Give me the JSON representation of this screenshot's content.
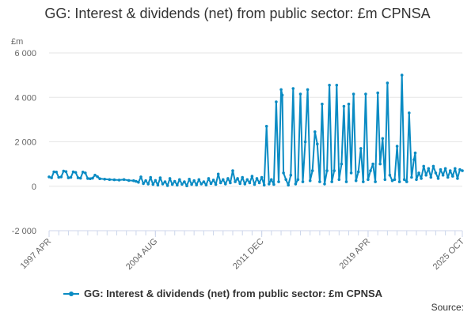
{
  "chart_data": {
    "type": "line",
    "title": "GG: Interest & dividends (net) from public sector: £m CPNSA",
    "ylabel": "£m",
    "xlabel": "",
    "ylim": [
      -2000,
      6000
    ],
    "yticks": [
      "6 000",
      "4 000",
      "2 000",
      "0",
      "-2 000"
    ],
    "ytick_values": [
      6000,
      4000,
      2000,
      0,
      -2000
    ],
    "xticks": [
      "1997 APR",
      "2004 AUG",
      "2011 DEC",
      "2019 APR",
      "2025 OCT"
    ],
    "xtick_index": [
      0,
      88,
      176,
      264,
      342
    ],
    "x_start": "1997 APR",
    "x_end": "2025 OCT",
    "series": [
      {
        "name": "GG: Interest & dividends (net) from public sector: £m CPNSA",
        "color": "#0a8bc3",
        "points": [
          [
            0,
            420
          ],
          [
            2,
            380
          ],
          [
            4,
            650
          ],
          [
            6,
            640
          ],
          [
            8,
            400
          ],
          [
            10,
            420
          ],
          [
            12,
            680
          ],
          [
            14,
            660
          ],
          [
            16,
            380
          ],
          [
            18,
            400
          ],
          [
            20,
            650
          ],
          [
            22,
            620
          ],
          [
            24,
            380
          ],
          [
            26,
            360
          ],
          [
            28,
            640
          ],
          [
            30,
            600
          ],
          [
            32,
            350
          ],
          [
            34,
            340
          ],
          [
            36,
            360
          ],
          [
            38,
            500
          ],
          [
            40,
            430
          ],
          [
            42,
            340
          ],
          [
            46,
            320
          ],
          [
            50,
            300
          ],
          [
            54,
            290
          ],
          [
            58,
            280
          ],
          [
            62,
            300
          ],
          [
            66,
            260
          ],
          [
            70,
            250
          ],
          [
            72,
            220
          ],
          [
            74,
            180
          ],
          [
            76,
            420
          ],
          [
            78,
            120
          ],
          [
            80,
            250
          ],
          [
            82,
            100
          ],
          [
            84,
            400
          ],
          [
            86,
            80
          ],
          [
            88,
            260
          ],
          [
            90,
            50
          ],
          [
            92,
            380
          ],
          [
            94,
            100
          ],
          [
            96,
            200
          ],
          [
            98,
            30
          ],
          [
            100,
            350
          ],
          [
            102,
            80
          ],
          [
            104,
            220
          ],
          [
            106,
            50
          ],
          [
            108,
            300
          ],
          [
            110,
            90
          ],
          [
            112,
            200
          ],
          [
            114,
            20
          ],
          [
            116,
            320
          ],
          [
            118,
            80
          ],
          [
            120,
            250
          ],
          [
            122,
            60
          ],
          [
            124,
            300
          ],
          [
            126,
            100
          ],
          [
            128,
            200
          ],
          [
            130,
            60
          ],
          [
            132,
            350
          ],
          [
            134,
            120
          ],
          [
            136,
            280
          ],
          [
            138,
            80
          ],
          [
            140,
            550
          ],
          [
            142,
            150
          ],
          [
            144,
            300
          ],
          [
            146,
            100
          ],
          [
            148,
            350
          ],
          [
            150,
            150
          ],
          [
            152,
            700
          ],
          [
            154,
            200
          ],
          [
            156,
            350
          ],
          [
            158,
            120
          ],
          [
            160,
            400
          ],
          [
            162,
            100
          ],
          [
            164,
            300
          ],
          [
            166,
            150
          ],
          [
            168,
            450
          ],
          [
            170,
            80
          ],
          [
            172,
            350
          ],
          [
            174,
            150
          ],
          [
            176,
            400
          ],
          [
            178,
            50
          ],
          [
            180,
            2700
          ],
          [
            182,
            100
          ],
          [
            184,
            300
          ],
          [
            186,
            80
          ],
          [
            188,
            3800
          ],
          [
            190,
            200
          ],
          [
            192,
            4350
          ],
          [
            193,
            4100
          ],
          [
            194,
            600
          ],
          [
            196,
            300
          ],
          [
            198,
            50
          ],
          [
            200,
            500
          ],
          [
            202,
            4400
          ],
          [
            204,
            100
          ],
          [
            206,
            300
          ],
          [
            208,
            4150
          ],
          [
            210,
            200
          ],
          [
            212,
            2000
          ],
          [
            214,
            4350
          ],
          [
            216,
            250
          ],
          [
            218,
            700
          ],
          [
            220,
            2450
          ],
          [
            222,
            1900
          ],
          [
            224,
            200
          ],
          [
            226,
            3700
          ],
          [
            228,
            100
          ],
          [
            230,
            700
          ],
          [
            232,
            4550
          ],
          [
            234,
            200
          ],
          [
            236,
            700
          ],
          [
            238,
            4550
          ],
          [
            240,
            300
          ],
          [
            242,
            1000
          ],
          [
            244,
            3600
          ],
          [
            246,
            200
          ],
          [
            248,
            3700
          ],
          [
            250,
            600
          ],
          [
            252,
            4150
          ],
          [
            254,
            250
          ],
          [
            256,
            650
          ],
          [
            258,
            1700
          ],
          [
            260,
            200
          ],
          [
            262,
            4150
          ],
          [
            264,
            300
          ],
          [
            266,
            700
          ],
          [
            268,
            1000
          ],
          [
            270,
            200
          ],
          [
            272,
            4200
          ],
          [
            274,
            1000
          ],
          [
            276,
            2150
          ],
          [
            278,
            300
          ],
          [
            280,
            4650
          ],
          [
            282,
            500
          ],
          [
            284,
            250
          ],
          [
            286,
            300
          ],
          [
            288,
            1800
          ],
          [
            290,
            200
          ],
          [
            292,
            5000
          ],
          [
            294,
            300
          ],
          [
            296,
            200
          ],
          [
            298,
            3300
          ],
          [
            300,
            400
          ],
          [
            302,
            1200
          ],
          [
            303,
            1500
          ],
          [
            304,
            300
          ],
          [
            306,
            600
          ],
          [
            308,
            350
          ],
          [
            310,
            900
          ],
          [
            312,
            500
          ],
          [
            314,
            800
          ],
          [
            316,
            400
          ],
          [
            318,
            900
          ],
          [
            320,
            600
          ],
          [
            322,
            350
          ],
          [
            324,
            750
          ],
          [
            326,
            500
          ],
          [
            328,
            800
          ],
          [
            330,
            400
          ],
          [
            332,
            700
          ],
          [
            334,
            450
          ],
          [
            336,
            800
          ],
          [
            338,
            350
          ],
          [
            340,
            750
          ],
          [
            342,
            700
          ]
        ]
      }
    ],
    "legend_position": "bottom"
  },
  "legend_label": "GG: Interest & dividends (net) from public sector: £m CPNSA",
  "source_label": "Source:"
}
